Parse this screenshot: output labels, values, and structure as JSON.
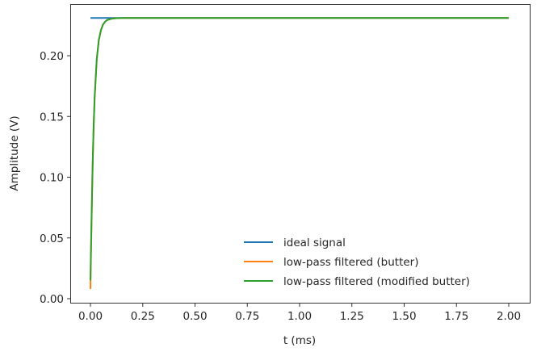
{
  "chart_data": {
    "type": "line",
    "title": "",
    "xlabel": "t (ms)",
    "ylabel": "Amplitude (V)",
    "xlim": [
      -0.1,
      2.1
    ],
    "ylim": [
      -0.003,
      0.243
    ],
    "grid": false,
    "legend_position": "lower right",
    "x_ticks": [
      0.0,
      0.25,
      0.5,
      0.75,
      1.0,
      1.25,
      1.5,
      1.75,
      2.0
    ],
    "x_tick_labels": [
      "0.00",
      "0.25",
      "0.50",
      "0.75",
      "1.00",
      "1.25",
      "1.50",
      "1.75",
      "2.00"
    ],
    "y_ticks": [
      0.0,
      0.05,
      0.1,
      0.15,
      0.2
    ],
    "y_tick_labels": [
      "0.00",
      "0.05",
      "0.10",
      "0.15",
      "0.20"
    ],
    "series": [
      {
        "name": "ideal signal",
        "color": "#1f77b4",
        "x": [
          0.0,
          2.0
        ],
        "y": [
          0.231,
          0.231
        ]
      },
      {
        "name": "low-pass filtered (butter)",
        "color": "#ff7f0e",
        "x": [
          0.0,
          0.002,
          0.005,
          0.01,
          0.015,
          0.02,
          0.03,
          0.04,
          0.05,
          0.06,
          0.07,
          0.08,
          0.1,
          0.12,
          0.15,
          0.2,
          0.5,
          1.0,
          1.5,
          2.0
        ],
        "y": [
          0.008,
          0.03,
          0.06,
          0.105,
          0.14,
          0.165,
          0.197,
          0.213,
          0.221,
          0.2255,
          0.228,
          0.2294,
          0.2304,
          0.2308,
          0.231,
          0.231,
          0.231,
          0.231,
          0.231,
          0.231
        ]
      },
      {
        "name": "low-pass filtered (modified butter)",
        "color": "#2ca02c",
        "x": [
          0.0,
          0.002,
          0.005,
          0.01,
          0.015,
          0.02,
          0.03,
          0.04,
          0.05,
          0.06,
          0.07,
          0.08,
          0.1,
          0.12,
          0.15,
          0.2,
          0.5,
          1.0,
          1.5,
          2.0
        ],
        "y": [
          0.015,
          0.035,
          0.063,
          0.107,
          0.141,
          0.166,
          0.197,
          0.213,
          0.221,
          0.2255,
          0.228,
          0.2294,
          0.2304,
          0.2308,
          0.231,
          0.231,
          0.231,
          0.231,
          0.231,
          0.231
        ]
      }
    ]
  },
  "legend": {
    "items": [
      {
        "label": "ideal signal",
        "color": "#1f77b4"
      },
      {
        "label": "low-pass filtered (butter)",
        "color": "#ff7f0e"
      },
      {
        "label": "low-pass filtered (modified butter)",
        "color": "#2ca02c"
      }
    ]
  },
  "colors": {
    "axis": "#333333",
    "text": "#262626",
    "background": "#ffffff"
  }
}
